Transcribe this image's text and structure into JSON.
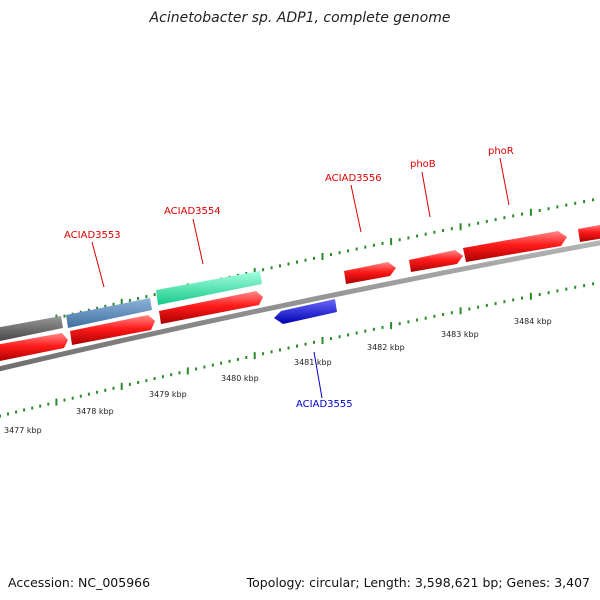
{
  "title": "Acinetobacter sp. ADP1, complete genome",
  "footer": {
    "accession": "Accession: NC_005966",
    "summary": "Topology: circular; Length: 3,598,621 bp; Genes: 3,407"
  },
  "gene_labels": {
    "ACIAD3553": "ACIAD3553",
    "ACIAD3554": "ACIAD3554",
    "ACIAD3555": "ACIAD3555",
    "ACIAD3556": "ACIAD3556",
    "phoB": "phoB",
    "phoR": "phoR"
  },
  "ticks": {
    "t3477": "3477 kbp",
    "t3478": "3478 kbp",
    "t3479": "3479 kbp",
    "t3480": "3480 kbp",
    "t3481": "3481 kbp",
    "t3482": "3482 kbp",
    "t3483": "3483 kbp",
    "t3484": "3484 kbp"
  },
  "colors": {
    "forward_cds": "#ee1111",
    "highlight_blue": "#4682b4",
    "highlight_teal": "#22e8a0",
    "gray_feature": "#666666",
    "reverse_cds": "#1a1aee",
    "backbone": "#8c8c8c",
    "ticks": "#2a8a2a"
  }
}
